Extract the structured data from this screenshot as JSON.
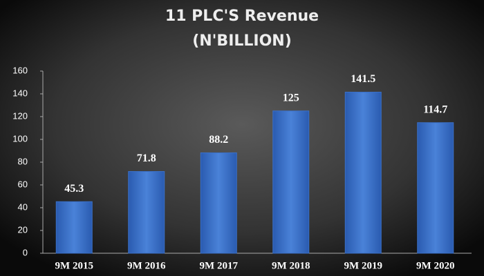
{
  "chart_data": {
    "type": "bar",
    "title": "11 PLC'S Revenue",
    "subtitle": "(N'BILLION)",
    "categories": [
      "9M 2015",
      "9M 2016",
      "9M 2017",
      "9M 2018",
      "9M 2019",
      "9M 2020"
    ],
    "values": [
      45.3,
      71.8,
      88.2,
      125,
      141.5,
      114.7
    ],
    "color": "#3a70c8",
    "ylim": [
      0,
      160
    ],
    "yticks": [
      0,
      20,
      40,
      60,
      80,
      100,
      120,
      140,
      160
    ],
    "grid": false
  }
}
